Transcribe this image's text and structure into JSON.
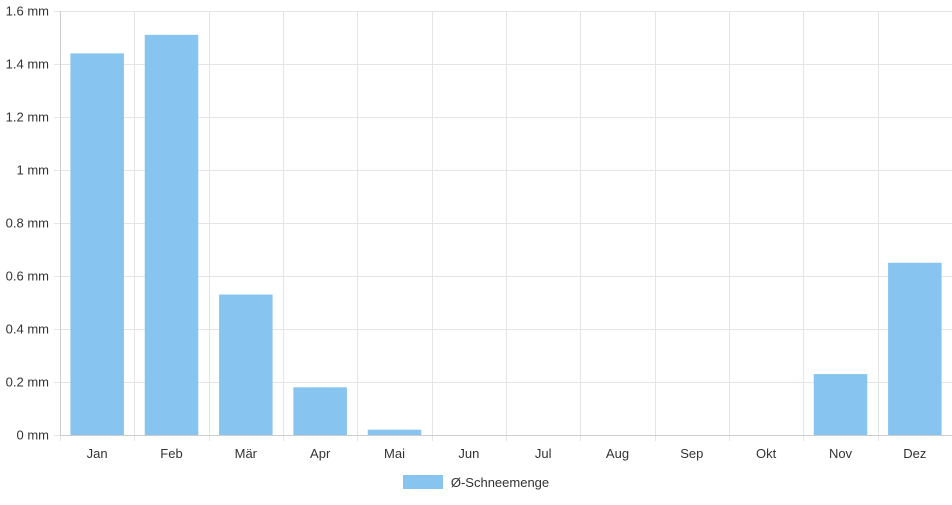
{
  "chart_data": {
    "type": "bar",
    "categories": [
      "Jan",
      "Feb",
      "Mär",
      "Apr",
      "Mai",
      "Jun",
      "Jul",
      "Aug",
      "Sep",
      "Okt",
      "Nov",
      "Dez"
    ],
    "series": [
      {
        "name": "Ø-Schneemenge",
        "values": [
          1.44,
          1.51,
          0.53,
          0.18,
          0.02,
          0,
          0,
          0,
          0,
          0,
          0.23,
          0.65
        ]
      }
    ],
    "ylim": [
      0,
      1.6
    ],
    "yticks": [
      0,
      0.2,
      0.4,
      0.6,
      0.8,
      1,
      1.2,
      1.4,
      1.6
    ],
    "ytick_labels": [
      "0 mm",
      "0.2 mm",
      "0.4 mm",
      "0.6 mm",
      "0.8 mm",
      "1 mm",
      "1.2 mm",
      "1.4 mm",
      "1.6 mm"
    ],
    "grid": true,
    "legend_position": "bottom-center",
    "colors": {
      "bar": "#87c5f0",
      "grid": "#e5e5e5",
      "axis": "#cccccc",
      "text": "#333333"
    }
  }
}
